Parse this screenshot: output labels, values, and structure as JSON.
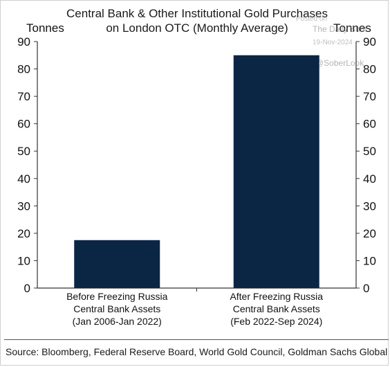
{
  "chart_data": {
    "type": "bar",
    "title": "Central Bank & Other Institutional Gold Purchases",
    "subtitle": "on London OTC (Monthly Average)",
    "ylabel_left": "Tonnes",
    "ylabel_right": "Tonnes",
    "ylim": [
      0,
      90
    ],
    "yticks": [
      0,
      10,
      20,
      30,
      40,
      50,
      60,
      70,
      80,
      90
    ],
    "categories": [
      [
        "Before Freezing Russia",
        "Central Bank Assets",
        "(Jan 2006-Jan 2022)"
      ],
      [
        "After Freezing Russia",
        "Central Bank Assets",
        "(Feb 2022-Sep 2024)"
      ]
    ],
    "values": [
      17.5,
      85
    ],
    "bar_color": "#0b2545",
    "grid": false
  },
  "watermark": {
    "posted_on": "Posted on",
    "site": "The Daily Shot",
    "date": "19-Nov-2024",
    "handle": "@SoberLook"
  },
  "source": "Source: Bloomberg, Federal Reserve Board, World Gold Council, Goldman Sachs Global Investment R"
}
